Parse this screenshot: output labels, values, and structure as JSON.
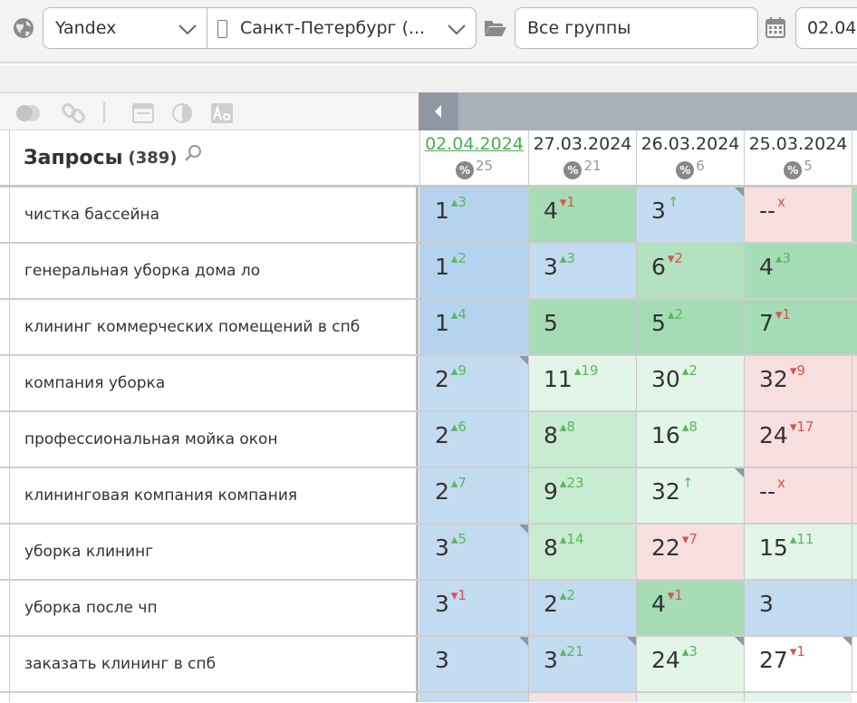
{
  "toolbar": {
    "engine": "Yandex",
    "region": "Санкт-Петербург (...",
    "group": "Все группы",
    "date": "02.04."
  },
  "grid": {
    "title": "Запросы",
    "count": "(389)",
    "dates": [
      {
        "label": "02.04.2024",
        "count": "25",
        "active": true
      },
      {
        "label": "27.03.2024",
        "count": "21",
        "active": false
      },
      {
        "label": "26.03.2024",
        "count": "6",
        "active": false
      },
      {
        "label": "25.03.2024",
        "count": "5",
        "active": false
      }
    ],
    "pct_symbol": "%",
    "rows": [
      {
        "query": "чистка бассейна",
        "cells": [
          {
            "pos": "1",
            "chg": "3",
            "dir": "up",
            "color": "#b5d3ee",
            "corner": false
          },
          {
            "pos": "4",
            "chg": "1",
            "dir": "down",
            "color": "#a5dcb5",
            "corner": false
          },
          {
            "pos": "3",
            "chg": "↑",
            "dir": "up",
            "color": "#c2dbf0",
            "corner": true
          },
          {
            "pos": "--",
            "chg": "x",
            "dir": "down",
            "color": "#f8dfdf",
            "corner": false
          }
        ]
      },
      {
        "query": "генеральная уборка дома ло",
        "cells": [
          {
            "pos": "1",
            "chg": "2",
            "dir": "up",
            "color": "#b5d3ee",
            "corner": false
          },
          {
            "pos": "3",
            "chg": "3",
            "dir": "up",
            "color": "#c2dbf0",
            "corner": false
          },
          {
            "pos": "6",
            "chg": "2",
            "dir": "down",
            "color": "#b2e2c0",
            "corner": false
          },
          {
            "pos": "4",
            "chg": "3",
            "dir": "up",
            "color": "#a5dcb5",
            "corner": false
          }
        ]
      },
      {
        "query": "клининг коммерческих помещений в спб",
        "cells": [
          {
            "pos": "1",
            "chg": "4",
            "dir": "up",
            "color": "#b5d3ee",
            "corner": false
          },
          {
            "pos": "5",
            "chg": "",
            "dir": "up",
            "color": "#a5dcb5",
            "corner": false
          },
          {
            "pos": "5",
            "chg": "2",
            "dir": "up",
            "color": "#a5dcb5",
            "corner": false
          },
          {
            "pos": "7",
            "chg": "1",
            "dir": "down",
            "color": "#a5dcb5",
            "corner": false
          }
        ]
      },
      {
        "query": "компания уборка",
        "cells": [
          {
            "pos": "2",
            "chg": "9",
            "dir": "up",
            "color": "#c2dbf0",
            "corner": true
          },
          {
            "pos": "11",
            "chg": "19",
            "dir": "up",
            "color": "#e3f5e8",
            "corner": false
          },
          {
            "pos": "30",
            "chg": "2",
            "dir": "up",
            "color": "#e3f5e8",
            "corner": false
          },
          {
            "pos": "32",
            "chg": "9",
            "dir": "down",
            "color": "#f8dfdf",
            "corner": false
          }
        ]
      },
      {
        "query": "профессиональная мойка окон",
        "cells": [
          {
            "pos": "2",
            "chg": "6",
            "dir": "up",
            "color": "#c2dbf0",
            "corner": false
          },
          {
            "pos": "8",
            "chg": "8",
            "dir": "up",
            "color": "#c8ecd2",
            "corner": false
          },
          {
            "pos": "16",
            "chg": "8",
            "dir": "up",
            "color": "#e3f5e8",
            "corner": false
          },
          {
            "pos": "24",
            "chg": "17",
            "dir": "down",
            "color": "#f8dfdf",
            "corner": false
          }
        ]
      },
      {
        "query": "клининговая компания компания",
        "cells": [
          {
            "pos": "2",
            "chg": "7",
            "dir": "up",
            "color": "#c2dbf0",
            "corner": false
          },
          {
            "pos": "9",
            "chg": "23",
            "dir": "up",
            "color": "#c8ecd2",
            "corner": false
          },
          {
            "pos": "32",
            "chg": "↑",
            "dir": "up",
            "color": "#e3f5e8",
            "corner": true
          },
          {
            "pos": "--",
            "chg": "x",
            "dir": "down",
            "color": "#f8dfdf",
            "corner": false
          }
        ]
      },
      {
        "query": "уборка клининг",
        "cells": [
          {
            "pos": "3",
            "chg": "5",
            "dir": "up",
            "color": "#c2dbf0",
            "corner": true
          },
          {
            "pos": "8",
            "chg": "14",
            "dir": "up",
            "color": "#c8ecd2",
            "corner": false
          },
          {
            "pos": "22",
            "chg": "7",
            "dir": "down",
            "color": "#f8dfdf",
            "corner": false
          },
          {
            "pos": "15",
            "chg": "11",
            "dir": "up",
            "color": "#e3f5e8",
            "corner": false
          }
        ]
      },
      {
        "query": "уборка после чп",
        "cells": [
          {
            "pos": "3",
            "chg": "1",
            "dir": "down",
            "color": "#c2dbf0",
            "corner": false
          },
          {
            "pos": "2",
            "chg": "2",
            "dir": "up",
            "color": "#c2dbf0",
            "corner": false
          },
          {
            "pos": "4",
            "chg": "1",
            "dir": "down",
            "color": "#a5dcb5",
            "corner": false
          },
          {
            "pos": "3",
            "chg": "",
            "dir": "up",
            "color": "#c2dbf0",
            "corner": false
          }
        ]
      },
      {
        "query": "заказать клининг в спб",
        "cells": [
          {
            "pos": "3",
            "chg": "",
            "dir": "up",
            "color": "#c2dbf0",
            "corner": true
          },
          {
            "pos": "3",
            "chg": "21",
            "dir": "up",
            "color": "#c2dbf0",
            "corner": true
          },
          {
            "pos": "24",
            "chg": "3",
            "dir": "up",
            "color": "#e3f5e8",
            "corner": true
          },
          {
            "pos": "27",
            "chg": "1",
            "dir": "down",
            "color": "#ffffff",
            "corner": true
          }
        ]
      }
    ],
    "partial_row_colors": [
      "#c2dbf0",
      "#f8dfdf",
      "#e3f5e8",
      "#e3f5e8"
    ]
  }
}
